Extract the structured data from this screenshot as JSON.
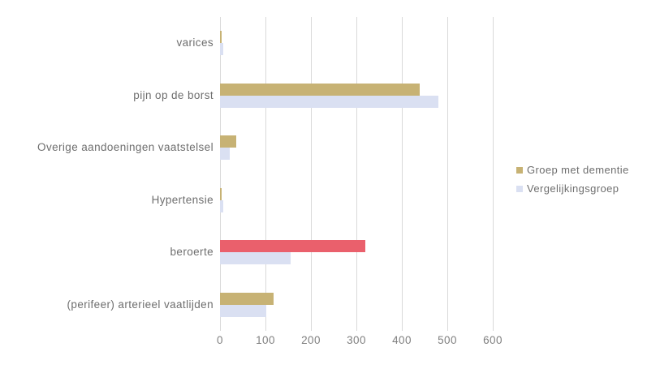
{
  "chart_data": {
    "type": "bar",
    "orientation": "horizontal",
    "title": "",
    "xlabel": "",
    "ylabel": "",
    "categories": [
      "varices",
      "pijn op de borst",
      "Overige aandoeningen vaatstelsel",
      "Hypertensie",
      "beroerte",
      "(perifeer) arterieel vaatlijden"
    ],
    "series": [
      {
        "name": "Groep met dementie",
        "color": "#c7b274",
        "values": [
          4,
          440,
          35,
          4,
          320,
          118
        ],
        "point_colors": [
          null,
          null,
          null,
          null,
          "#ea606c",
          null
        ]
      },
      {
        "name": "Vergelijkingsgroep",
        "color": "#dae0f2",
        "values": [
          7,
          480,
          22,
          7,
          155,
          102
        ]
      }
    ],
    "xlim": [
      0,
      600
    ],
    "xticks": [
      0,
      100,
      200,
      300,
      400,
      500,
      600
    ],
    "grid": "vertical-only",
    "legend_position": "right",
    "highlight_note": "The 'beroerte' bar of the 'Groep met dementie' series is highlighted in red"
  },
  "colors": {
    "background": "#ffffff",
    "gridline": "#d9d9d9",
    "category_text": "#6e6e6e",
    "tick_text": "#7f7f7f",
    "highlight": "#ea606c"
  }
}
